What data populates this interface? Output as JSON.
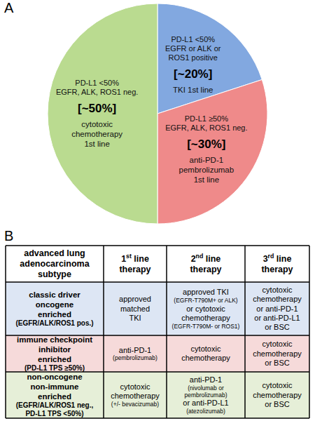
{
  "chart_data": {
    "type": "pie",
    "values": [
      20,
      30,
      50
    ],
    "value_labels": [
      "[~20%]",
      "[~30%]",
      "[~50%]"
    ],
    "data_labels": true,
    "colors": [
      "#82a8e0",
      "#ef8a8a",
      "#badb90"
    ],
    "slice_text_top": [
      [
        "PD-L1 <50%",
        "EGFR or ALK or",
        "ROS1 positive"
      ],
      [
        "PD-L1 ≥50%",
        "EGFR, ALK, ROS1 neg."
      ],
      [
        "PD-L1 <50%",
        "EGFR, ALK, ROS1 neg."
      ]
    ],
    "slice_text_bottom": [
      [
        "TKI 1st line"
      ],
      [
        "anti-PD-1",
        "pembrolizumab",
        "1st line"
      ],
      [
        "cytotoxic",
        "chemotherapy",
        "1st line"
      ]
    ]
  },
  "panel_labels": [
    "A",
    "B"
  ],
  "table": {
    "header": [
      [
        "advanced lung",
        "adenocarcinoma",
        "subtype"
      ],
      [
        "1st line",
        "therapy"
      ],
      [
        "2nd line",
        "therapy"
      ],
      [
        "3rd line",
        "therapy"
      ]
    ],
    "rows": [
      [
        [
          "classic driver",
          "oncogene",
          "enriched",
          "(EGFR/ALK/ROS1 pos.)"
        ],
        [
          "approved",
          "matched",
          "TKI"
        ],
        [
          "approved TKI",
          "(EGFR-T790M+ or ALK)",
          "or cytotoxic",
          "chemotherapy",
          "(EGFR-T790M- or ROS1)"
        ],
        [
          "cytotoxic",
          "chemotherapy",
          "or anti-PD-1",
          "or anti-PD-L1",
          "or BSC"
        ]
      ],
      [
        [
          "immune checkpoint",
          "inhibitor",
          "enriched",
          "(PD-L1 TPS ≥50%)"
        ],
        [
          "anti-PD-1",
          "(pembrolizumab)"
        ],
        [
          "cytotoxic",
          "chemotherapy"
        ],
        [
          "cytotoxic",
          "chemotherapy",
          "or BSC"
        ]
      ],
      [
        [
          "non-oncogene",
          "non-immune",
          "enriched",
          "(EGFR/ALK/ROS1 neg.,",
          "PD-L1 TPS <50%)"
        ],
        [
          "cytotoxic",
          "chemotherapy",
          "(+/- bevacizumab)"
        ],
        [
          "anti-PD-1",
          "(nivolumab or",
          "pembrolizumab)",
          "or anti-PD-L1",
          "(atezolizumab)"
        ],
        [
          "cytotoxic",
          "chemotherapy",
          "or BSC"
        ]
      ]
    ]
  }
}
